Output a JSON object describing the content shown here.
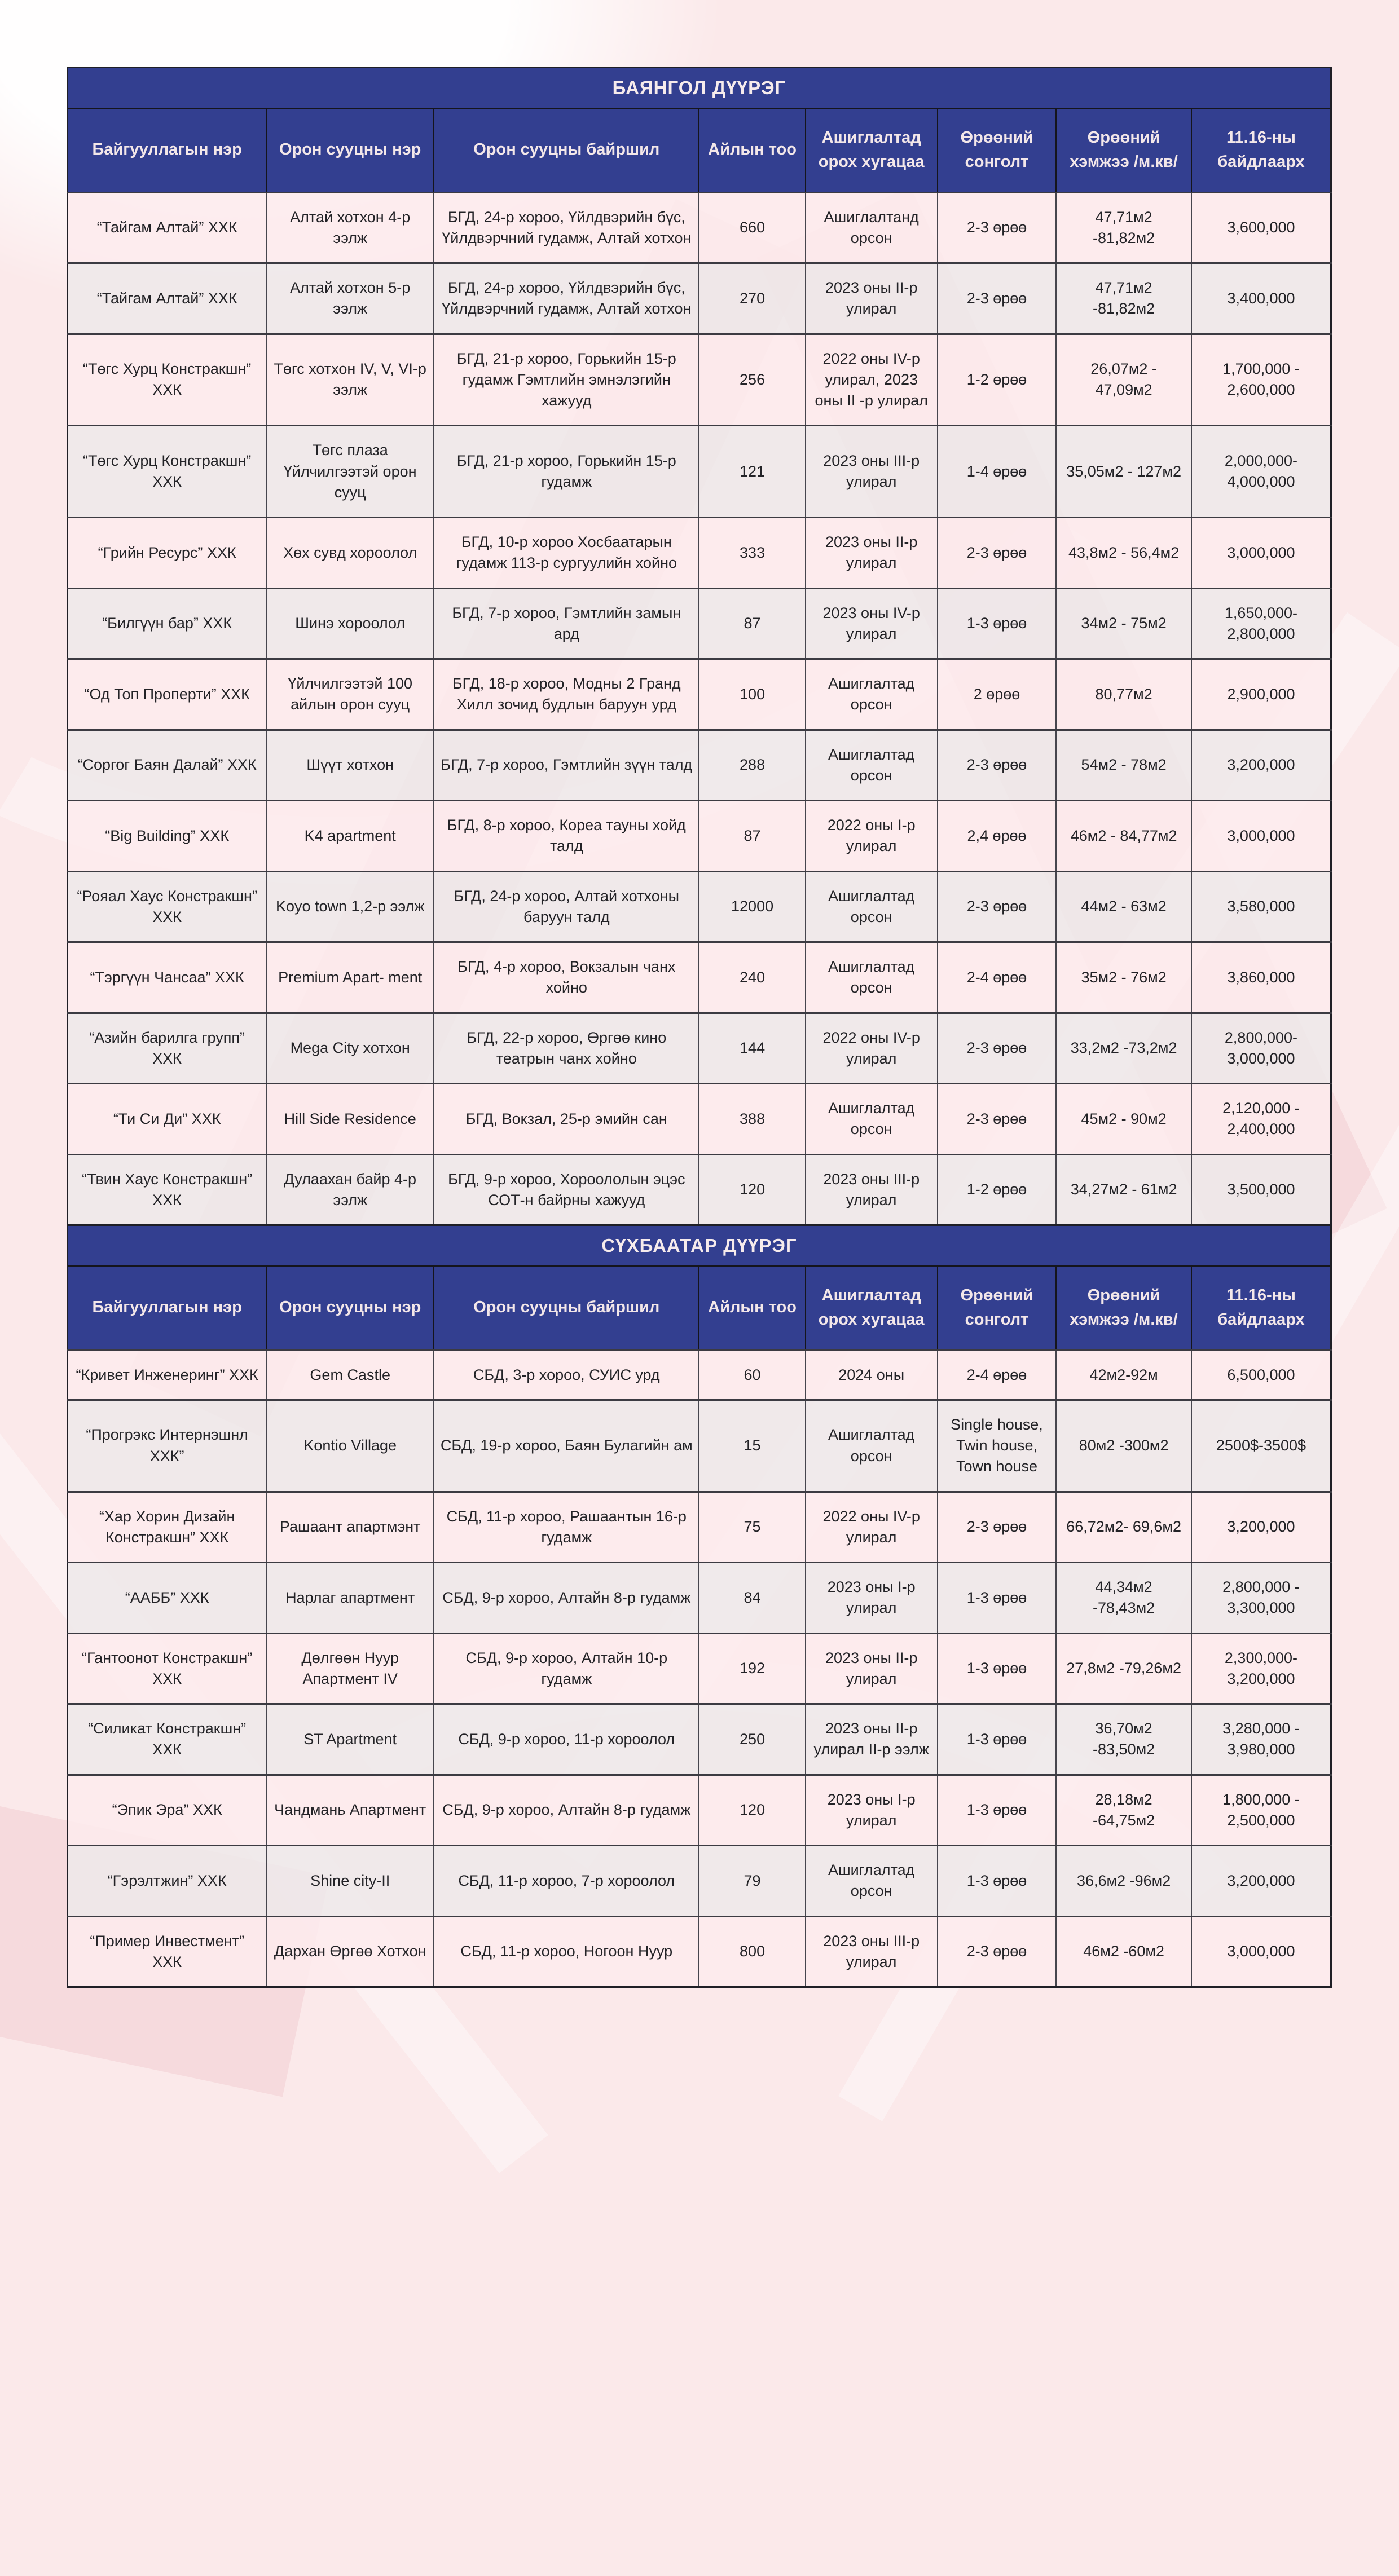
{
  "page": {
    "background_color": "#fbe9ea",
    "header_bg": "#333f90",
    "header_text_color": "#f3e7e9",
    "row_pink": "#fdebed",
    "row_grey": "#eee8e9"
  },
  "columns": [
    "Байгууллагын нэр",
    "Орон сууцны нэр",
    "Орон сууцны байршил",
    "Айлын тоо",
    "Ашиглалтад орох хугацаа",
    "Өрөөний сонголт",
    "Өрөөний хэмжээ /м.кв/",
    "11.16-ны байдлаарх"
  ],
  "sections": [
    {
      "title": "БАЯНГОЛ ДҮҮРЭГ",
      "rows": [
        [
          "“Тайгам Алтай” ХХК",
          "Алтай хотхон 4-р ээлж",
          "БГД, 24-р хороо, Үйлдвэрийн бүс, Үйлдвэрчний гудамж, Алтай хотхон",
          "660",
          "Ашиглалтанд орсон",
          "2-3 өрөө",
          "47,71м2 -81,82м2",
          "3,600,000"
        ],
        [
          "“Тайгам Алтай” ХХК",
          "Алтай хотхон 5-р ээлж",
          "БГД, 24-р хороо, Үйлдвэрийн бүс, Үйлдвэрчний гудамж, Алтай хотхон",
          "270",
          "2023 оны II-р улирал",
          "2-3 өрөө",
          "47,71м2 -81,82м2",
          "3,400,000"
        ],
        [
          "“Төгс Хурц Констракшн” ХХК",
          "Төгс хотхон IV, V, VI-р ээлж",
          "БГД, 21-р хороо, Горькийн 15-р гудамж Гэмтлийн эмнэлэгийн хажууд",
          "256",
          "2022 оны IV-р улирал, 2023 оны II -р улирал",
          "1-2 өрөө",
          "26,07м2 - 47,09м2",
          "1,700,000 - 2,600,000"
        ],
        [
          "“Төгс Хурц Констракшн” ХХК",
          "Төгс плаза Үйлчилгээтэй орон сууц",
          "БГД, 21-р хороо, Горькийн 15-р гудамж",
          "121",
          "2023 оны III-р улирал",
          "1-4 өрөө",
          "35,05м2 - 127м2",
          "2,000,000- 4,000,000"
        ],
        [
          "“Грийн Ресурс” ХХК",
          "Хөх сувд хороолол",
          "БГД, 10-р хороо Хосбаатарын гудамж 113-р сургуулийн хойно",
          "333",
          "2023 оны II-р улирал",
          "2-3 өрөө",
          "43,8м2 - 56,4м2",
          "3,000,000"
        ],
        [
          "“Билгүүн бар” ХХК",
          "Шинэ хороолол",
          "БГД, 7-р хороо, Гэмтлийн замын ард",
          "87",
          "2023 оны IV-р улирал",
          "1-3 өрөө",
          "34м2 - 75м2",
          "1,650,000- 2,800,000"
        ],
        [
          "“Од Топ Проперти” ХХК",
          "Үйлчилгээтэй 100 айлын орон сууц",
          "БГД, 18-р хороо, Модны 2 Гранд Хилл зочид будлын баруун урд",
          "100",
          "Ашиглалтад орсон",
          "2 өрөө",
          "80,77м2",
          "2,900,000"
        ],
        [
          "“Соргог Баян Далай” ХХК",
          "Шүүт хотхон",
          "БГД, 7-р хороо, Гэмтлийн зүүн талд",
          "288",
          "Ашиглалтад орсон",
          "2-3 өрөө",
          "54м2 - 78м2",
          "3,200,000"
        ],
        [
          "“Big Building” ХХК",
          "K4 apartment",
          "БГД, 8-р хороо, Кореа тауны хойд талд",
          "87",
          "2022 оны I-р улирал",
          "2,4 өрөө",
          "46м2 - 84,77м2",
          "3,000,000"
        ],
        [
          "“Рояал Хаус Констракшн” ХХК",
          "Koyo town 1,2-р ээлж",
          "БГД, 24-р хороо, Алтай хотхоны баруун талд",
          "12000",
          "Ашиглалтад орсон",
          "2-3 өрөө",
          "44м2 - 63м2",
          "3,580,000"
        ],
        [
          "“Тэргүүн Чансаа” ХХК",
          "Premium Apart- ment",
          "БГД, 4-р хороо, Вокзалын чанх хойно",
          "240",
          "Ашиглалтад орсон",
          "2-4 өрөө",
          "35м2 - 76м2",
          "3,860,000"
        ],
        [
          "“Азийн барилга групп” ХХК",
          "Mega City хотхон",
          "БГД, 22-р хороо, Өргөө кино театрын чанх хойно",
          "144",
          "2022 оны IV-р улирал",
          "2-3 өрөө",
          "33,2м2 -73,2м2",
          "2,800,000- 3,000,000"
        ],
        [
          "“Ти Си Ди” ХХК",
          "Hill Side Residence",
          "БГД, Вокзал, 25-р эмийн сан",
          "388",
          "Ашиглалтад орсон",
          "2-3 өрөө",
          "45м2 - 90м2",
          "2,120,000 - 2,400,000"
        ],
        [
          "“Твин Хаус Констракшн” ХХК",
          "Дулаахан байр 4-р ээлж",
          "БГД, 9-р хороо, Хороололын эцэс СОТ-н байрны хажууд",
          "120",
          "2023 оны III-р улирал",
          "1-2 өрөө",
          "34,27м2 - 61м2",
          "3,500,000"
        ]
      ]
    },
    {
      "title": "СҮХБААТАР ДҮҮРЭГ",
      "rows": [
        [
          "“Кривет Инженеринг” ХХК",
          "Gem Castle",
          "СБД, 3-р хороо, СУИС урд",
          "60",
          "2024 оны",
          "2-4 өрөө",
          "42м2-92м",
          "6,500,000"
        ],
        [
          "“Прогрэкс Интернэшнл ХХК”",
          "Kontio Village",
          "СБД, 19-р хороо, Баян Булагийн ам",
          "15",
          "Ашиглалтад орсон",
          "Single house, Twin house, Town house",
          "80м2 -300м2",
          "2500$-3500$"
        ],
        [
          "“Хар Хорин Дизайн Констракшн” ХХК",
          "Рашаант апартмэнт",
          "СБД, 11-р хороо, Рашаантын 16-р гудамж",
          "75",
          "2022 оны IV-р улирал",
          "2-3 өрөө",
          "66,72м2- 69,6м2",
          "3,200,000"
        ],
        [
          "“ААББ” ХХК",
          "Нарлаг апартмент",
          "СБД, 9-р хороо, Алтайн 8-р гудамж",
          "84",
          "2023 оны I-р улирал",
          "1-3 өрөө",
          "44,34м2 -78,43м2",
          "2,800,000 - 3,300,000"
        ],
        [
          "“Гантоонот Констракшн” ХХК",
          "Дөлгөөн Нуур Апартмент IV",
          "СБД, 9-р хороо, Алтайн 10-р гудамж",
          "192",
          "2023 оны II-р улирал",
          "1-3 өрөө",
          "27,8м2 -79,26м2",
          "2,300,000- 3,200,000"
        ],
        [
          "“Силикат Констракшн” ХХК",
          "ST Apartment",
          "СБД, 9-р хороо, 11-р хороолол",
          "250",
          "2023 оны II-р улирал II-р ээлж",
          "1-3 өрөө",
          "36,70м2 -83,50м2",
          "3,280,000 - 3,980,000"
        ],
        [
          "“Эпик Эра” ХХК",
          "Чандмань Апартмент",
          "СБД, 9-р хороо, Алтайн 8-р гудамж",
          "120",
          "2023 оны I-р улирал",
          "1-3 өрөө",
          "28,18м2 -64,75м2",
          "1,800,000 - 2,500,000"
        ],
        [
          "“Гэрэлтжин” ХХК",
          "Shine city-II",
          "СБД, 11-р хороо, 7-р хороолол",
          "79",
          "Ашиглалтад орсон",
          "1-3 өрөө",
          "36,6м2 -96м2",
          "3,200,000"
        ],
        [
          "“Пример Инвестмент” ХХК",
          "Дархан Өргөө Хотхон",
          "СБД, 11-р хороо, Ногоон Нуур",
          "800",
          "2023 оны III-р улирал",
          "2-3 өрөө",
          "46м2 -60м2",
          "3,000,000"
        ]
      ]
    }
  ]
}
